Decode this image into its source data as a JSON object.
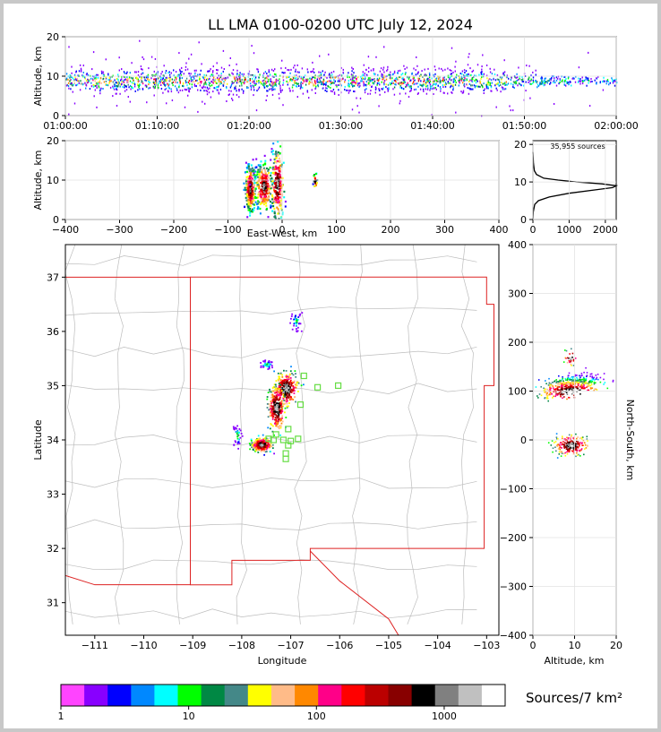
{
  "title": "LL LMA 0100-0200 UTC July 12, 2024",
  "chart_data": [
    {
      "type": "heatmap",
      "name": "altitude-vs-time",
      "ylabel": "Altitude, km",
      "xlabel": "",
      "xlim": [
        "01:00:00",
        "02:00:00"
      ],
      "ylim": [
        0,
        20
      ],
      "xticks": [
        "01:00:00",
        "01:10:00",
        "01:20:00",
        "01:30:00",
        "01:40:00",
        "01:50:00",
        "02:00:00"
      ],
      "yticks": [
        0,
        10,
        20
      ],
      "grid": true,
      "activity_bins_minutes": [
        0,
        2,
        4,
        6,
        8,
        10,
        12,
        14,
        16,
        18,
        20,
        22,
        24,
        26,
        28,
        30,
        32,
        34,
        36,
        38,
        40,
        42,
        44,
        46,
        48,
        50,
        52,
        54,
        56,
        58
      ],
      "activity_level": [
        0.8,
        0.8,
        0.8,
        0.8,
        0.9,
        0.9,
        0.9,
        0.9,
        0.9,
        0.9,
        0.9,
        0.9,
        0.9,
        0.9,
        0.9,
        0.9,
        0.9,
        0.9,
        0.9,
        0.9,
        0.9,
        0.9,
        0.8,
        0.7,
        0.5,
        0.5,
        0.45,
        0.4,
        0.35,
        0.3
      ]
    },
    {
      "type": "heatmap",
      "name": "altitude-vs-east-west",
      "xlabel": "East-West, km",
      "ylabel": "Altitude, km",
      "xlim": [
        -400,
        400
      ],
      "ylim": [
        0,
        20
      ],
      "xticks": [
        -400,
        -300,
        -200,
        -100,
        0,
        100,
        200,
        300,
        400
      ],
      "yticks": [
        0,
        10,
        20
      ],
      "grid": true,
      "clusters": [
        {
          "x": -60,
          "z": 8,
          "sx": 5,
          "sz": 3
        },
        {
          "x": -35,
          "z": 8.5,
          "sx": 8,
          "sz": 3
        },
        {
          "x": -10,
          "z": 9,
          "sx": 6,
          "sz": 5
        },
        {
          "x": 60,
          "z": 10,
          "sx": 2,
          "sz": 1
        }
      ]
    },
    {
      "type": "line",
      "name": "source-count-vs-altitude",
      "annotation": "35,955 sources",
      "xlim": [
        0,
        2300
      ],
      "ylim": [
        0,
        21
      ],
      "xticks": [
        0,
        1000,
        2000
      ],
      "yticks": [
        0,
        10,
        20
      ],
      "grid": true,
      "series": [
        {
          "altitude_km": [
            0,
            2,
            4,
            5,
            6,
            7,
            8,
            8.5,
            9,
            9.5,
            10,
            10.5,
            11,
            12,
            13,
            15,
            17,
            18
          ],
          "count": [
            0,
            10,
            50,
            150,
            450,
            1000,
            1800,
            2200,
            2300,
            1900,
            1200,
            700,
            300,
            100,
            40,
            15,
            5,
            0
          ]
        }
      ]
    },
    {
      "type": "heatmap",
      "name": "plan-view-map",
      "xlabel": "Longitude",
      "ylabel": "Latitude",
      "xlim": [
        -111.6,
        -102.75
      ],
      "ylim": [
        30.4,
        37.6
      ],
      "xticks": [
        -111,
        -110,
        -109,
        -108,
        -107,
        -106,
        -105,
        -104,
        -103
      ],
      "yticks": [
        31,
        32,
        33,
        34,
        35,
        36,
        37
      ],
      "clusters": [
        {
          "lon": -107.1,
          "lat": 34.95,
          "slon": 0.12,
          "slat": 0.15
        },
        {
          "lon": -107.3,
          "lat": 34.6,
          "slon": 0.08,
          "slat": 0.2
        },
        {
          "lon": -107.6,
          "lat": 33.92,
          "slon": 0.1,
          "slat": 0.06
        },
        {
          "lon": -108.1,
          "lat": 34.1,
          "slon": 0.05,
          "slat": 0.12
        },
        {
          "lon": -106.9,
          "lat": 36.2,
          "slon": 0.05,
          "slat": 0.1
        },
        {
          "lon": -107.5,
          "lat": 35.4,
          "slon": 0.08,
          "slat": 0.05
        }
      ],
      "stations": [
        [
          -106.73,
          35.18
        ],
        [
          -106.45,
          34.97
        ],
        [
          -106.03,
          35.0
        ],
        [
          -106.8,
          34.65
        ],
        [
          -107.05,
          34.2
        ],
        [
          -107.3,
          34.1
        ],
        [
          -107.15,
          34.0
        ],
        [
          -107.0,
          33.98
        ],
        [
          -106.85,
          34.02
        ],
        [
          -107.05,
          33.9
        ],
        [
          -107.1,
          33.75
        ],
        [
          -107.1,
          33.65
        ],
        [
          -107.35,
          34.0
        ],
        [
          -107.45,
          34.02
        ]
      ]
    },
    {
      "type": "heatmap",
      "name": "north-south-vs-altitude",
      "xlabel": "Altitude, km",
      "ylabel": "North-South, km",
      "xlim": [
        0,
        20
      ],
      "ylim": [
        -400,
        400
      ],
      "xticks": [
        0,
        10,
        20
      ],
      "yticks": [
        -400,
        -300,
        -200,
        -100,
        0,
        100,
        200,
        300,
        400
      ],
      "grid": true
    },
    {
      "type": "colorbar",
      "name": "source-density-colorbar",
      "label": "Sources/7 km²",
      "tick_labels": [
        "1",
        "10",
        "100",
        "1000"
      ],
      "colors": [
        "#ff44ff",
        "#8800ff",
        "#0000ff",
        "#0088ff",
        "#00ffff",
        "#00ff00",
        "#008844",
        "#448888",
        "#ffff00",
        "#ffbb88",
        "#ff8800",
        "#ff0088",
        "#ff0000",
        "#bb0000",
        "#880000",
        "#000000",
        "#808080",
        "#c0c0c0",
        "#ffffff"
      ]
    }
  ]
}
